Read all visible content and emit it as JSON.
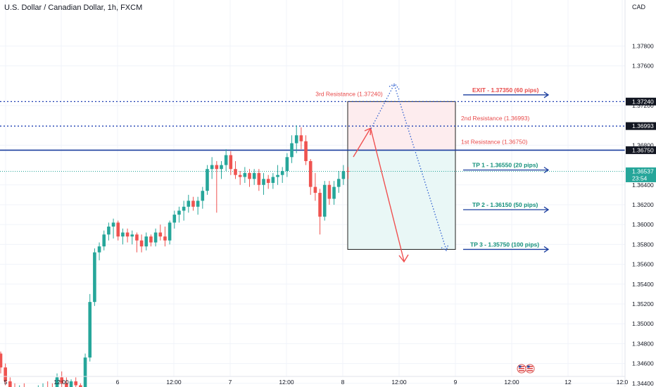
{
  "header": {
    "title": "U.S. Dollar / Canadian Dollar, 1h, FXCM",
    "currency": "CAD"
  },
  "colors": {
    "up": "#26a69a",
    "down": "#ef5350",
    "resistance_line": "#1a3d9e",
    "dotted_line": "#1e3fb3",
    "text_red": "#e84a4a",
    "text_green": "#13907a",
    "path_red": "#f05050",
    "path_blue": "#2f5fcf",
    "zone_pink": "#fdecee",
    "zone_teal": "#e9f7f6"
  },
  "price_axis": {
    "ticks": [
      "1.37800",
      "1.37600",
      "1.37200",
      "1.36800",
      "1.36400",
      "1.36200",
      "1.36000",
      "1.35800",
      "1.35600",
      "1.35400",
      "1.35200",
      "1.35000",
      "1.34800",
      "1.34600",
      "1.34400"
    ],
    "tick_values": [
      1.378,
      1.376,
      1.372,
      1.368,
      1.364,
      1.362,
      1.36,
      1.358,
      1.356,
      1.354,
      1.352,
      1.35,
      1.348,
      1.346,
      1.344
    ],
    "overlapped_tick": "1.37200",
    "labels": [
      {
        "text": "1.37240",
        "value": 1.3724,
        "style": "dark"
      },
      {
        "text": "1.36993",
        "value": 1.36993,
        "style": "dark"
      },
      {
        "text": "1.36750",
        "value": 1.3675,
        "style": "dark"
      },
      {
        "text": "1.36537",
        "value": 1.36537,
        "style": "green"
      },
      {
        "text": "23:54",
        "style": "green-sub"
      }
    ]
  },
  "time_axis": {
    "ticks": [
      "5",
      "12:00",
      "6",
      "12:00",
      "7",
      "12:00",
      "8",
      "12:00",
      "9",
      "12:00",
      "12",
      "12:0"
    ]
  },
  "annotations": {
    "resistance_3": "3rd Resistance (1.37240)",
    "resistance_2": "2nd Resistance (1.36993)",
    "resistance_1": "1st Resistance (1.36750)",
    "exit": "EXIT - 1.37350 (60 pips)",
    "tp1": "TP 1 - 1.36550 (20 pips)",
    "tp2": "TP 2 - 1.36150 (50 pips)",
    "tp3": "TP 3 - 1.35750 (100 pips)"
  },
  "chart_data": {
    "type": "candlestick",
    "title": "U.S. Dollar / Canadian Dollar, 1h, FXCM",
    "y_unit": "CAD",
    "ylim": [
      1.3432,
      1.3818
    ],
    "grid": true,
    "levels": {
      "resistance_3": 1.3724,
      "resistance_2": 1.36993,
      "resistance_1": 1.3675,
      "exit": 1.3735,
      "tp1": 1.3655,
      "tp2": 1.3615,
      "tp3": 1.3575,
      "last_price": 1.36537
    },
    "candles": [
      {
        "o": 1.347,
        "h": 1.3472,
        "l": 1.345,
        "c": 1.3456
      },
      {
        "o": 1.3456,
        "h": 1.346,
        "l": 1.3438,
        "c": 1.3442
      },
      {
        "o": 1.3442,
        "h": 1.3446,
        "l": 1.3432,
        "c": 1.3436
      },
      {
        "o": 1.3436,
        "h": 1.344,
        "l": 1.3428,
        "c": 1.3432
      },
      {
        "o": 1.3432,
        "h": 1.3438,
        "l": 1.3428,
        "c": 1.3434
      },
      {
        "o": 1.3434,
        "h": 1.344,
        "l": 1.3428,
        "c": 1.3432
      },
      {
        "o": 1.3432,
        "h": 1.3436,
        "l": 1.3428,
        "c": 1.343
      },
      {
        "o": 1.343,
        "h": 1.3434,
        "l": 1.3428,
        "c": 1.3432
      },
      {
        "o": 1.3432,
        "h": 1.3438,
        "l": 1.3428,
        "c": 1.3434
      },
      {
        "o": 1.3434,
        "h": 1.344,
        "l": 1.3428,
        "c": 1.3436
      },
      {
        "o": 1.3436,
        "h": 1.3442,
        "l": 1.343,
        "c": 1.3434
      },
      {
        "o": 1.3434,
        "h": 1.344,
        "l": 1.3428,
        "c": 1.3432
      },
      {
        "o": 1.3432,
        "h": 1.345,
        "l": 1.3428,
        "c": 1.3446
      },
      {
        "o": 1.3446,
        "h": 1.3452,
        "l": 1.3432,
        "c": 1.344
      },
      {
        "o": 1.344,
        "h": 1.3446,
        "l": 1.3432,
        "c": 1.3436
      },
      {
        "o": 1.3436,
        "h": 1.3444,
        "l": 1.343,
        "c": 1.3442
      },
      {
        "o": 1.3442,
        "h": 1.3446,
        "l": 1.3432,
        "c": 1.3438
      },
      {
        "o": 1.3438,
        "h": 1.344,
        "l": 1.343,
        "c": 1.3434
      },
      {
        "o": 1.3434,
        "h": 1.347,
        "l": 1.3432,
        "c": 1.3466
      },
      {
        "o": 1.3466,
        "h": 1.353,
        "l": 1.3462,
        "c": 1.3522
      },
      {
        "o": 1.3522,
        "h": 1.3576,
        "l": 1.3518,
        "c": 1.3572
      },
      {
        "o": 1.3572,
        "h": 1.3582,
        "l": 1.3564,
        "c": 1.3578
      },
      {
        "o": 1.3578,
        "h": 1.3594,
        "l": 1.3574,
        "c": 1.359
      },
      {
        "o": 1.359,
        "h": 1.3602,
        "l": 1.3584,
        "c": 1.3598
      },
      {
        "o": 1.3598,
        "h": 1.3606,
        "l": 1.3586,
        "c": 1.3602
      },
      {
        "o": 1.3602,
        "h": 1.3604,
        "l": 1.3584,
        "c": 1.3588
      },
      {
        "o": 1.3588,
        "h": 1.3596,
        "l": 1.358,
        "c": 1.3592
      },
      {
        "o": 1.3592,
        "h": 1.3596,
        "l": 1.3582,
        "c": 1.3588
      },
      {
        "o": 1.3588,
        "h": 1.3594,
        "l": 1.358,
        "c": 1.359
      },
      {
        "o": 1.359,
        "h": 1.3592,
        "l": 1.3572,
        "c": 1.3584
      },
      {
        "o": 1.3584,
        "h": 1.359,
        "l": 1.3572,
        "c": 1.3578
      },
      {
        "o": 1.3578,
        "h": 1.3592,
        "l": 1.3574,
        "c": 1.3588
      },
      {
        "o": 1.3588,
        "h": 1.359,
        "l": 1.3578,
        "c": 1.3582
      },
      {
        "o": 1.3582,
        "h": 1.3596,
        "l": 1.3578,
        "c": 1.3592
      },
      {
        "o": 1.3592,
        "h": 1.36,
        "l": 1.3584,
        "c": 1.3588
      },
      {
        "o": 1.3588,
        "h": 1.3598,
        "l": 1.3578,
        "c": 1.3584
      },
      {
        "o": 1.3584,
        "h": 1.3604,
        "l": 1.358,
        "c": 1.3602
      },
      {
        "o": 1.3602,
        "h": 1.3614,
        "l": 1.3596,
        "c": 1.361
      },
      {
        "o": 1.361,
        "h": 1.3618,
        "l": 1.3602,
        "c": 1.3614
      },
      {
        "o": 1.3614,
        "h": 1.3624,
        "l": 1.3604,
        "c": 1.3618
      },
      {
        "o": 1.3618,
        "h": 1.363,
        "l": 1.3612,
        "c": 1.3624
      },
      {
        "o": 1.3624,
        "h": 1.3628,
        "l": 1.3614,
        "c": 1.3618
      },
      {
        "o": 1.3618,
        "h": 1.3628,
        "l": 1.361,
        "c": 1.3624
      },
      {
        "o": 1.3624,
        "h": 1.3638,
        "l": 1.3616,
        "c": 1.3634
      },
      {
        "o": 1.3634,
        "h": 1.366,
        "l": 1.363,
        "c": 1.3656
      },
      {
        "o": 1.3656,
        "h": 1.3668,
        "l": 1.3646,
        "c": 1.366
      },
      {
        "o": 1.366,
        "h": 1.3664,
        "l": 1.3612,
        "c": 1.3656
      },
      {
        "o": 1.3656,
        "h": 1.3664,
        "l": 1.3646,
        "c": 1.366
      },
      {
        "o": 1.366,
        "h": 1.3676,
        "l": 1.3654,
        "c": 1.367
      },
      {
        "o": 1.367,
        "h": 1.3674,
        "l": 1.365,
        "c": 1.3656
      },
      {
        "o": 1.3656,
        "h": 1.3664,
        "l": 1.3646,
        "c": 1.365
      },
      {
        "o": 1.365,
        "h": 1.3654,
        "l": 1.364,
        "c": 1.3648
      },
      {
        "o": 1.3648,
        "h": 1.3658,
        "l": 1.3642,
        "c": 1.3652
      },
      {
        "o": 1.3652,
        "h": 1.3656,
        "l": 1.3638,
        "c": 1.3646
      },
      {
        "o": 1.3646,
        "h": 1.3656,
        "l": 1.364,
        "c": 1.3652
      },
      {
        "o": 1.3652,
        "h": 1.3656,
        "l": 1.3634,
        "c": 1.364
      },
      {
        "o": 1.364,
        "h": 1.3652,
        "l": 1.363,
        "c": 1.3646
      },
      {
        "o": 1.3646,
        "h": 1.365,
        "l": 1.3636,
        "c": 1.3642
      },
      {
        "o": 1.3642,
        "h": 1.3652,
        "l": 1.3636,
        "c": 1.3648
      },
      {
        "o": 1.3648,
        "h": 1.366,
        "l": 1.364,
        "c": 1.365
      },
      {
        "o": 1.365,
        "h": 1.3658,
        "l": 1.3642,
        "c": 1.3654
      },
      {
        "o": 1.3654,
        "h": 1.3672,
        "l": 1.3648,
        "c": 1.3668
      },
      {
        "o": 1.3668,
        "h": 1.369,
        "l": 1.3662,
        "c": 1.3682
      },
      {
        "o": 1.3682,
        "h": 1.37,
        "l": 1.3672,
        "c": 1.369
      },
      {
        "o": 1.369,
        "h": 1.3698,
        "l": 1.3676,
        "c": 1.3684
      },
      {
        "o": 1.3684,
        "h": 1.369,
        "l": 1.366,
        "c": 1.3664
      },
      {
        "o": 1.3664,
        "h": 1.3666,
        "l": 1.363,
        "c": 1.3638
      },
      {
        "o": 1.3638,
        "h": 1.3652,
        "l": 1.3624,
        "c": 1.3632
      },
      {
        "o": 1.3632,
        "h": 1.3636,
        "l": 1.359,
        "c": 1.3608
      },
      {
        "o": 1.3608,
        "h": 1.3644,
        "l": 1.3604,
        "c": 1.364
      },
      {
        "o": 1.364,
        "h": 1.3644,
        "l": 1.362,
        "c": 1.3626
      },
      {
        "o": 1.3626,
        "h": 1.3644,
        "l": 1.362,
        "c": 1.3638
      },
      {
        "o": 1.3638,
        "h": 1.3654,
        "l": 1.3632,
        "c": 1.3646
      },
      {
        "o": 1.3646,
        "h": 1.366,
        "l": 1.364,
        "c": 1.3654
      },
      {
        "o": 1.3654,
        "h": 1.3658,
        "l": 1.3646,
        "c": 1.36537
      }
    ]
  }
}
